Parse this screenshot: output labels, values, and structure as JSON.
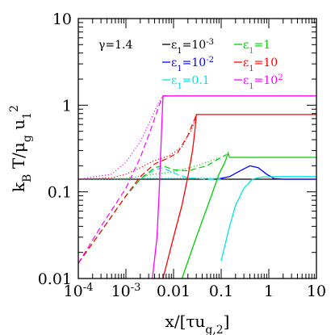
{
  "chart_data": {
    "type": "line",
    "xlabel": "x/[τu_{g,2}]",
    "ylabel": "k_B T/μ_g u_1^2",
    "xscale": "log",
    "yscale": "log",
    "xlim": [
      0.0001,
      10
    ],
    "ylim": [
      0.01,
      10
    ],
    "x_ticks": [
      {
        "value": 0.0001,
        "label": "10^-4"
      },
      {
        "value": 0.001,
        "label": "10^-3"
      },
      {
        "value": 0.01,
        "label": "0.01"
      },
      {
        "value": 0.1,
        "label": "0.1"
      },
      {
        "value": 1,
        "label": "1"
      },
      {
        "value": 10,
        "label": "10"
      }
    ],
    "y_ticks": [
      {
        "value": 0.01,
        "label": "0.01"
      },
      {
        "value": 0.1,
        "label": "0.1"
      },
      {
        "value": 1,
        "label": "1"
      },
      {
        "value": 10,
        "label": "10"
      }
    ],
    "gamma_text": "γ=1.4",
    "legend": [
      {
        "text": "ε1=10^-3",
        "color": "#000000"
      },
      {
        "text": "ε1=10^-2",
        "color": "#0000ff"
      },
      {
        "text": "ε1=0.1",
        "color": "#00e5e5"
      },
      {
        "text": "ε1=1",
        "color": "#00cc00"
      },
      {
        "text": "ε1=10",
        "color": "#ff0000"
      },
      {
        "text": "ε1=10^2",
        "color": "#ff00ff"
      }
    ],
    "series": [
      {
        "name": "ε1=10^-3",
        "color": "#000000",
        "points": [
          [
            0.0001,
            0.14
          ],
          [
            10,
            0.14
          ]
        ],
        "dotted": [],
        "dashed": []
      },
      {
        "name": "ε1=10^-2",
        "color": "#0000ff",
        "points": [
          [
            0.08,
            0.14
          ],
          [
            0.15,
            0.15
          ],
          [
            0.25,
            0.175
          ],
          [
            0.4,
            0.2
          ],
          [
            0.6,
            0.19
          ],
          [
            0.9,
            0.16
          ],
          [
            1.3,
            0.142
          ],
          [
            2,
            0.14
          ],
          [
            10,
            0.14
          ]
        ],
        "dotted": [],
        "dashed": []
      },
      {
        "name": "ε1=0.1",
        "color": "#00e5e5",
        "points": [
          [
            0.1,
            0.016
          ],
          [
            0.15,
            0.04
          ],
          [
            0.2,
            0.07
          ],
          [
            0.3,
            0.11
          ],
          [
            0.45,
            0.14
          ],
          [
            0.7,
            0.148
          ],
          [
            1.5,
            0.15
          ],
          [
            10,
            0.15
          ]
        ],
        "dotted": [
          [
            0.0001,
            0.14
          ],
          [
            0.001,
            0.141
          ],
          [
            0.005,
            0.145
          ],
          [
            0.02,
            0.145
          ],
          [
            0.1,
            0.143
          ]
        ],
        "dashed": [
          [
            0.0001,
            0.015
          ],
          [
            0.0003,
            0.035
          ],
          [
            0.001,
            0.09
          ],
          [
            0.002,
            0.14
          ],
          [
            0.004,
            0.18
          ],
          [
            0.006,
            0.19
          ],
          [
            0.01,
            0.165
          ],
          [
            0.02,
            0.145
          ],
          [
            0.05,
            0.14
          ],
          [
            0.1,
            0.14
          ]
        ]
      },
      {
        "name": "ε1=1",
        "color": "#00cc00",
        "points": [
          [
            0.015,
            0.01
          ],
          [
            0.03,
            0.03
          ],
          [
            0.06,
            0.085
          ],
          [
            0.09,
            0.16
          ],
          [
            0.12,
            0.22
          ],
          [
            0.14,
            0.28
          ],
          [
            0.15,
            0.25
          ],
          [
            10,
            0.25
          ]
        ],
        "dotted": [
          [
            0.0001,
            0.14
          ],
          [
            0.001,
            0.143
          ],
          [
            0.004,
            0.16
          ],
          [
            0.01,
            0.17
          ],
          [
            0.03,
            0.2
          ],
          [
            0.1,
            0.25
          ]
        ],
        "dashed": [
          [
            0.0001,
            0.015
          ],
          [
            0.0003,
            0.035
          ],
          [
            0.001,
            0.09
          ],
          [
            0.002,
            0.14
          ],
          [
            0.004,
            0.19
          ],
          [
            0.006,
            0.2
          ],
          [
            0.01,
            0.18
          ],
          [
            0.02,
            0.175
          ],
          [
            0.05,
            0.2
          ],
          [
            0.1,
            0.25
          ],
          [
            0.13,
            0.27
          ]
        ]
      },
      {
        "name": "ε1=10",
        "color": "#ff0000",
        "points": [
          [
            0.006,
            0.01
          ],
          [
            0.01,
            0.03
          ],
          [
            0.015,
            0.07
          ],
          [
            0.02,
            0.15
          ],
          [
            0.025,
            0.3
          ],
          [
            0.028,
            0.5
          ],
          [
            0.03,
            0.78
          ],
          [
            10,
            0.78
          ]
        ],
        "dotted": [
          [
            0.0001,
            0.14
          ],
          [
            0.0005,
            0.145
          ],
          [
            0.001,
            0.16
          ],
          [
            0.002,
            0.19
          ],
          [
            0.004,
            0.23
          ],
          [
            0.008,
            0.26
          ],
          [
            0.015,
            0.33
          ],
          [
            0.025,
            0.55
          ],
          [
            0.03,
            0.78
          ]
        ],
        "dashed": [
          [
            0.0001,
            0.015
          ],
          [
            0.0003,
            0.035
          ],
          [
            0.001,
            0.09
          ],
          [
            0.002,
            0.15
          ],
          [
            0.004,
            0.21
          ],
          [
            0.007,
            0.24
          ],
          [
            0.012,
            0.28
          ],
          [
            0.02,
            0.45
          ],
          [
            0.028,
            0.7
          ],
          [
            0.03,
            0.78
          ]
        ]
      },
      {
        "name": "ε1=10^2",
        "color": "#ff00ff",
        "points": [
          [
            0.0036,
            0.01
          ],
          [
            0.0045,
            0.03
          ],
          [
            0.005,
            0.1
          ],
          [
            0.0055,
            0.4
          ],
          [
            0.006,
            1.28
          ],
          [
            10,
            1.28
          ]
        ],
        "dotted": [
          [
            0.0001,
            0.14
          ],
          [
            0.0005,
            0.16
          ],
          [
            0.001,
            0.22
          ],
          [
            0.002,
            0.38
          ],
          [
            0.003,
            0.6
          ],
          [
            0.004,
            0.85
          ],
          [
            0.005,
            1.1
          ],
          [
            0.006,
            1.28
          ]
        ],
        "dashed": [
          [
            0.0001,
            0.015
          ],
          [
            0.0003,
            0.04
          ],
          [
            0.001,
            0.11
          ],
          [
            0.002,
            0.25
          ],
          [
            0.003,
            0.45
          ],
          [
            0.004,
            0.7
          ],
          [
            0.005,
            1.0
          ],
          [
            0.006,
            1.28
          ]
        ]
      }
    ]
  }
}
